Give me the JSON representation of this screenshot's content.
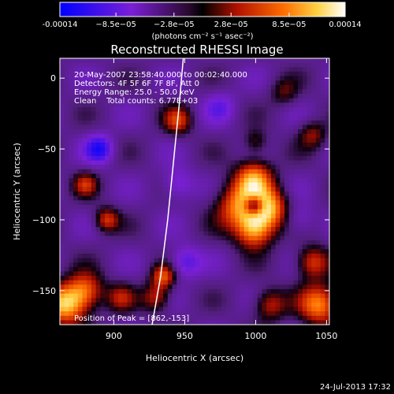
{
  "chart_data": {
    "type": "heatmap",
    "title": "Reconstructed RHESSI Image",
    "xlabel": "Heliocentric X (arcsec)",
    "ylabel": "Heliocentric Y (arcsec)",
    "xlim": [
      862,
      1052
    ],
    "ylim": [
      -174,
      14
    ],
    "x_ticks": [
      900,
      950,
      1000,
      1050
    ],
    "y_ticks": [
      0,
      -50,
      -100,
      -150
    ],
    "colorbar": {
      "range": [
        -0.00014,
        0.00014
      ],
      "tick_values": [
        -0.00014,
        -8.5e-05,
        -2.8e-05,
        2.8e-05,
        8.5e-05,
        0.00014
      ],
      "tick_labels": [
        "-0.00014",
        "−8.5e−05",
        "−2.8e−05",
        "2.8e−05",
        "8.5e−05",
        "0.00014"
      ],
      "unit_label": "(photons cm⁻² s⁻¹ asec⁻²)"
    },
    "annotations": [
      "20-May-2007 23:58:40.000 to 00:02:40.000",
      "Detectors: 4F 5F 6F 7F 8F, Att 0",
      "Energy Range: 25.0 - 50.0 keV",
      "Clean    Total counts: 6.77E+03"
    ],
    "peak_label": "Position of Peak = [862,-153]",
    "peak": [
      862,
      -153
    ],
    "limb_curve": [
      [
        927,
        -174
      ],
      [
        933,
        -140
      ],
      [
        938,
        -100
      ],
      [
        942,
        -60
      ],
      [
        946,
        -20
      ],
      [
        949,
        14
      ]
    ],
    "sources": [
      {
        "x": 990,
        "y": -90,
        "sigma": 12,
        "amp": 0.00012
      },
      {
        "x": 1008,
        "y": -92,
        "sigma": 10,
        "amp": 0.00013
      },
      {
        "x": 999,
        "y": -70,
        "sigma": 9,
        "amp": 0.000105
      },
      {
        "x": 999,
        "y": -108,
        "sigma": 9,
        "amp": 0.00011
      },
      {
        "x": 999,
        "y": -90,
        "sigma": 5,
        "amp": -0.00014
      },
      {
        "x": 866,
        "y": -160,
        "sigma": 10,
        "amp": 0.00014
      },
      {
        "x": 880,
        "y": -150,
        "sigma": 9,
        "amp": 0.0001
      },
      {
        "x": 935,
        "y": -140,
        "sigma": 6,
        "amp": 9.5e-05
      },
      {
        "x": 930,
        "y": -155,
        "sigma": 7,
        "amp": 7.5e-05
      },
      {
        "x": 905,
        "y": -155,
        "sigma": 7,
        "amp": 6e-05
      },
      {
        "x": 895,
        "y": -100,
        "sigma": 6,
        "amp": 8.5e-05
      },
      {
        "x": 880,
        "y": -75,
        "sigma": 6,
        "amp": 7e-05
      },
      {
        "x": 945,
        "y": -30,
        "sigma": 7,
        "amp": 8e-05
      },
      {
        "x": 1000,
        "y": -45,
        "sigma": 6,
        "amp": 5e-05
      },
      {
        "x": 1040,
        "y": -130,
        "sigma": 8,
        "amp": 9e-05
      },
      {
        "x": 1045,
        "y": -160,
        "sigma": 10,
        "amp": 0.00012
      },
      {
        "x": 1010,
        "y": -160,
        "sigma": 8,
        "amp": 7.5e-05
      },
      {
        "x": 1040,
        "y": -40,
        "sigma": 7,
        "amp": 6e-05
      },
      {
        "x": 1020,
        "y": -10,
        "sigma": 7,
        "amp": 4.5e-05
      },
      {
        "x": 890,
        "y": -50,
        "sigma": 7,
        "amp": -8e-05
      },
      {
        "x": 945,
        "y": -75,
        "sigma": 8,
        "amp": -5e-05
      },
      {
        "x": 950,
        "y": -130,
        "sigma": 8,
        "amp": -6e-05
      },
      {
        "x": 975,
        "y": -20,
        "sigma": 8,
        "amp": -4e-05
      },
      {
        "x": 1030,
        "y": -100,
        "sigma": 8,
        "amp": -4e-05
      }
    ]
  },
  "footer": {
    "timestamp": "24-Jul-2013 17:32"
  }
}
